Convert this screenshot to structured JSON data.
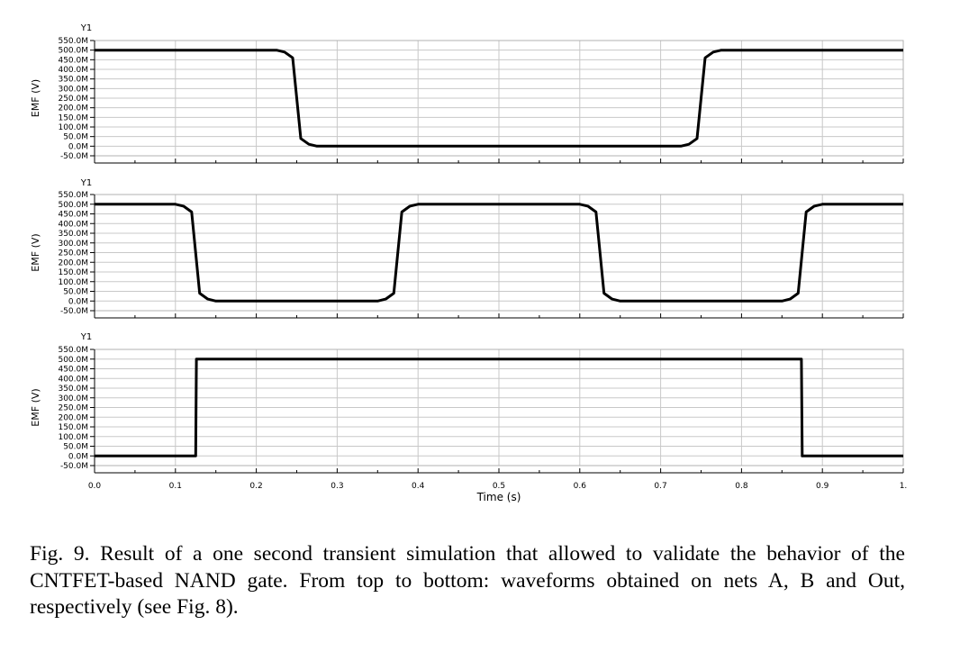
{
  "chart_data": [
    {
      "type": "line",
      "y_title": "Y1",
      "ylabel": "EMF (V)",
      "yticks": [
        "550.0M",
        "500.0M",
        "450.0M",
        "400.0M",
        "350.0M",
        "300.0M",
        "250.0M",
        "200.0M",
        "150.0M",
        "100.0M",
        "50.0M",
        "0.0M",
        "-50.0M"
      ],
      "ylim": [
        -50,
        550
      ],
      "xlim": [
        0,
        1
      ],
      "grid": true,
      "series": [
        {
          "x": [
            0,
            0.225,
            0.235,
            0.245,
            0.255,
            0.265,
            0.275,
            0.5,
            0.725,
            0.735,
            0.745,
            0.755,
            0.765,
            0.775,
            1.0
          ],
          "y": [
            500,
            500,
            490,
            460,
            40,
            10,
            0,
            0,
            0,
            10,
            40,
            460,
            490,
            500,
            500
          ]
        }
      ]
    },
    {
      "type": "line",
      "y_title": "Y1",
      "ylabel": "EMF (V)",
      "yticks": [
        "550.0M",
        "500.0M",
        "450.0M",
        "400.0M",
        "350.0M",
        "300.0M",
        "250.0M",
        "200.0M",
        "150.0M",
        "100.0M",
        "50.0M",
        "0.0M",
        "-50.0M"
      ],
      "ylim": [
        -50,
        550
      ],
      "xlim": [
        0,
        1
      ],
      "grid": true,
      "series": [
        {
          "x": [
            0,
            0.1,
            0.11,
            0.12,
            0.13,
            0.14,
            0.15,
            0.35,
            0.36,
            0.37,
            0.38,
            0.39,
            0.4,
            0.6,
            0.61,
            0.62,
            0.63,
            0.64,
            0.65,
            0.85,
            0.86,
            0.87,
            0.88,
            0.89,
            0.9,
            1.0
          ],
          "y": [
            500,
            500,
            490,
            460,
            40,
            10,
            0,
            0,
            10,
            40,
            460,
            490,
            500,
            500,
            490,
            460,
            40,
            10,
            0,
            0,
            10,
            40,
            460,
            490,
            500,
            500
          ]
        }
      ]
    },
    {
      "type": "line",
      "y_title": "Y1",
      "ylabel": "EMF (V)",
      "yticks": [
        "550.0M",
        "500.0M",
        "450.0M",
        "400.0M",
        "350.0M",
        "300.0M",
        "250.0M",
        "200.0M",
        "150.0M",
        "100.0M",
        "50.0M",
        "0.0M",
        "-50.0M"
      ],
      "ylim": [
        -50,
        550
      ],
      "xlim": [
        0,
        1
      ],
      "grid": true,
      "xticks": [
        "0.0",
        "0.1",
        "0.2",
        "0.3",
        "0.4",
        "0.5",
        "0.6",
        "0.7",
        "0.8",
        "0.9",
        "1."
      ],
      "xlabel": "Time (s)",
      "series": [
        {
          "x": [
            0,
            0.125,
            0.126,
            0.874,
            0.875,
            1.0
          ],
          "y": [
            0,
            0,
            500,
            500,
            0,
            0
          ]
        }
      ]
    }
  ],
  "caption": "Fig. 9.  Result of a one second transient simulation that allowed to validate the behavior of the CNTFET-based NAND gate. From top to bottom: waveforms obtained on nets A, B and Out, respectively (see Fig. 8)."
}
